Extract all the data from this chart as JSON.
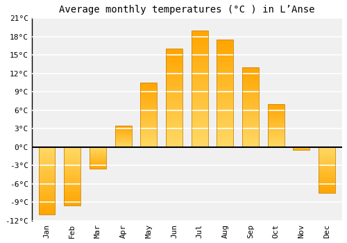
{
  "title": "Average monthly temperatures (°C ) in L’Anse",
  "months": [
    "Jan",
    "Feb",
    "Mar",
    "Apr",
    "May",
    "Jun",
    "Jul",
    "Aug",
    "Sep",
    "Oct",
    "Nov",
    "Dec"
  ],
  "values": [
    -11,
    -9.5,
    -3.5,
    3.5,
    10.5,
    16,
    19,
    17.5,
    13,
    7,
    -0.5,
    -7.5
  ],
  "bar_color_top": "#FFD966",
  "bar_color_bottom": "#FFA500",
  "bar_edge_color": "#CC8800",
  "background_color": "#ffffff",
  "plot_bg_color": "#f0f0f0",
  "grid_color": "#ffffff",
  "ylim": [
    -12,
    21
  ],
  "yticks": [
    -12,
    -9,
    -6,
    -3,
    0,
    3,
    6,
    9,
    12,
    15,
    18,
    21
  ],
  "ytick_labels": [
    "-12°C",
    "-9°C",
    "-6°C",
    "-3°C",
    "0°C",
    "3°C",
    "6°C",
    "9°C",
    "12°C",
    "15°C",
    "18°C",
    "21°C"
  ],
  "title_fontsize": 10,
  "tick_fontsize": 8,
  "font_family": "monospace"
}
